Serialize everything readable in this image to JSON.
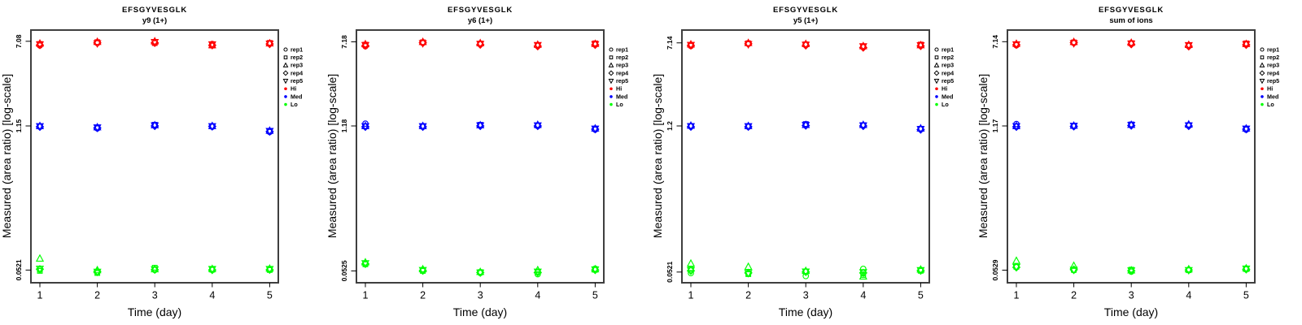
{
  "figure": {
    "xlabel": "Time (day)",
    "ylabel": "Measured (area ratio) [log-scale]",
    "x_tick_labels": [
      "1",
      "2",
      "3",
      "4",
      "5"
    ],
    "background_color": "#ffffff",
    "legend": {
      "position": "right",
      "reps": [
        {
          "label": "rep1",
          "symbol": "circle"
        },
        {
          "label": "rep2",
          "symbol": "square"
        },
        {
          "label": "rep3",
          "symbol": "triangle-up"
        },
        {
          "label": "rep4",
          "symbol": "diamond"
        },
        {
          "label": "rep5",
          "symbol": "triangle-down"
        }
      ],
      "levels": [
        {
          "label": "Hi",
          "color": "#FF0000"
        },
        {
          "label": "Med",
          "color": "#0000FF"
        },
        {
          "label": "Lo",
          "color": "#00FF00"
        }
      ]
    }
  },
  "chart_data": [
    {
      "type": "scatter",
      "title": "EFSGYVESGLK",
      "subtitle": "y9 (1+)",
      "xlabel": "Time (day)",
      "ylabel": "Measured (area ratio) [log-scale]",
      "yscale": "log",
      "grid": false,
      "ylim": [
        0.045,
        7.6
      ],
      "x": [
        1,
        2,
        3,
        4,
        5
      ],
      "yticks": [
        {
          "label": "7.08",
          "value": 7.08
        },
        {
          "label": "1.15",
          "value": 1.15
        },
        {
          "label": "0.0521",
          "value": 0.0521
        }
      ],
      "levels": [
        {
          "name": "Hi",
          "color": "#FF0000",
          "series": [
            {
              "name": "rep1",
              "symbol": "circle",
              "values": [
                6.46,
                6.81,
                6.89,
                6.68,
                6.73
              ]
            },
            {
              "name": "rep2",
              "symbol": "square",
              "values": [
                6.68,
                6.95,
                6.81,
                6.46,
                6.84
              ]
            },
            {
              "name": "rep3",
              "symbol": "triangle-up",
              "values": [
                6.76,
                7.01,
                7.08,
                6.53,
                6.79
              ]
            },
            {
              "name": "rep4",
              "symbol": "diamond",
              "values": [
                6.53,
                6.84,
                6.84,
                6.5,
                6.68
              ]
            },
            {
              "name": "rep5",
              "symbol": "triangle-down",
              "values": [
                6.61,
                6.76,
                6.95,
                6.61,
                6.71
              ]
            }
          ]
        },
        {
          "name": "Med",
          "color": "#0000FF",
          "series": [
            {
              "name": "rep1",
              "symbol": "circle",
              "values": [
                1.13,
                1.09,
                1.16,
                1.13,
                1.01
              ]
            },
            {
              "name": "rep2",
              "symbol": "square",
              "values": [
                1.14,
                1.11,
                1.18,
                1.14,
                1.03
              ]
            },
            {
              "name": "rep3",
              "symbol": "triangle-up",
              "values": [
                1.15,
                1.12,
                1.17,
                1.15,
                1.04
              ]
            },
            {
              "name": "rep4",
              "symbol": "diamond",
              "values": [
                1.13,
                1.1,
                1.15,
                1.14,
                1.02
              ]
            },
            {
              "name": "rep5",
              "symbol": "triangle-down",
              "values": [
                1.14,
                1.11,
                1.16,
                1.14,
                1.03
              ]
            }
          ]
        },
        {
          "name": "Lo",
          "color": "#00FF00",
          "series": [
            {
              "name": "rep1",
              "symbol": "circle",
              "values": [
                0.0525,
                0.0498,
                0.0522,
                0.0528,
                0.0529
              ]
            },
            {
              "name": "rep2",
              "symbol": "square",
              "values": [
                0.0512,
                0.0489,
                0.0548,
                0.0525,
                0.0522
              ]
            },
            {
              "name": "rep3",
              "symbol": "triangle-up",
              "values": [
                0.0668,
                0.0521,
                0.0532,
                0.0535,
                0.0538
              ]
            },
            {
              "name": "rep4",
              "symbol": "diamond",
              "values": [
                0.0531,
                0.0505,
                0.0525,
                0.0522,
                0.0525
              ]
            },
            {
              "name": "rep5",
              "symbol": "triangle-down",
              "values": [
                0.0535,
                0.0501,
                0.0528,
                0.0531,
                0.0531
              ]
            }
          ]
        }
      ]
    },
    {
      "type": "scatter",
      "title": "EFSGYVESGLK",
      "subtitle": "y6 (1+)",
      "xlabel": "Time (day)",
      "ylabel": "Measured (area ratio) [log-scale]",
      "yscale": "log",
      "grid": false,
      "ylim": [
        0.045,
        7.6
      ],
      "x": [
        1,
        2,
        3,
        4,
        5
      ],
      "yticks": [
        {
          "label": "7.18",
          "value": 7.18
        },
        {
          "label": "1.18",
          "value": 1.18
        },
        {
          "label": "0.0525",
          "value": 0.0525
        }
      ],
      "levels": [
        {
          "name": "Hi",
          "color": "#FF0000",
          "series": [
            {
              "name": "rep1",
              "symbol": "circle",
              "values": [
                6.53,
                7.01,
                6.84,
                6.61,
                6.81
              ]
            },
            {
              "name": "rep2",
              "symbol": "square",
              "values": [
                6.76,
                7.11,
                6.92,
                6.68,
                6.95
              ]
            },
            {
              "name": "rep3",
              "symbol": "triangle-up",
              "values": [
                6.84,
                7.18,
                6.99,
                6.76,
                6.89
              ]
            },
            {
              "name": "rep4",
              "symbol": "diamond",
              "values": [
                6.61,
                7.04,
                6.76,
                6.53,
                6.73
              ]
            },
            {
              "name": "rep5",
              "symbol": "triangle-down",
              "values": [
                6.68,
                6.95,
                6.84,
                6.68,
                6.81
              ]
            }
          ]
        },
        {
          "name": "Med",
          "color": "#0000FF",
          "series": [
            {
              "name": "rep1",
              "symbol": "circle",
              "values": [
                1.24,
                1.16,
                1.19,
                1.18,
                1.09
              ]
            },
            {
              "name": "rep2",
              "symbol": "square",
              "values": [
                1.17,
                1.17,
                1.21,
                1.19,
                1.11
              ]
            },
            {
              "name": "rep3",
              "symbol": "triangle-up",
              "values": [
                1.18,
                1.18,
                1.2,
                1.21,
                1.12
              ]
            },
            {
              "name": "rep4",
              "symbol": "diamond",
              "values": [
                1.16,
                1.16,
                1.18,
                1.18,
                1.1
              ]
            },
            {
              "name": "rep5",
              "symbol": "triangle-down",
              "values": [
                1.17,
                1.17,
                1.19,
                1.19,
                1.11
              ]
            }
          ]
        },
        {
          "name": "Lo",
          "color": "#00FF00",
          "series": [
            {
              "name": "rep1",
              "symbol": "circle",
              "values": [
                0.0615,
                0.0531,
                0.0502,
                0.0489,
                0.0551
              ]
            },
            {
              "name": "rep2",
              "symbol": "square",
              "values": [
                0.0605,
                0.0525,
                0.0512,
                0.0512,
                0.0538
              ]
            },
            {
              "name": "rep3",
              "symbol": "triangle-up",
              "values": [
                0.0632,
                0.0545,
                0.0515,
                0.0535,
                0.0545
              ]
            },
            {
              "name": "rep4",
              "symbol": "diamond",
              "values": [
                0.061,
                0.0528,
                0.0508,
                0.0508,
                0.0535
              ]
            },
            {
              "name": "rep5",
              "symbol": "triangle-down",
              "values": [
                0.0618,
                0.0533,
                0.0505,
                0.0515,
                0.0541
              ]
            }
          ]
        }
      ]
    },
    {
      "type": "scatter",
      "title": "EFSGYVESGLK",
      "subtitle": "y5 (1+)",
      "xlabel": "Time (day)",
      "ylabel": "Measured (area ratio) [log-scale]",
      "yscale": "log",
      "grid": false,
      "ylim": [
        0.045,
        7.6
      ],
      "x": [
        1,
        2,
        3,
        4,
        5
      ],
      "yticks": [
        {
          "label": "7.14",
          "value": 7.14
        },
        {
          "label": "1.2",
          "value": 1.2
        },
        {
          "label": "0.0521",
          "value": 0.0521
        }
      ],
      "levels": [
        {
          "name": "Hi",
          "color": "#FF0000",
          "series": [
            {
              "name": "rep1",
              "symbol": "circle",
              "values": [
                6.68,
                6.99,
                6.84,
                6.53,
                6.76
              ]
            },
            {
              "name": "rep2",
              "symbol": "square",
              "values": [
                6.84,
                7.08,
                6.92,
                6.61,
                6.89
              ]
            },
            {
              "name": "rep3",
              "symbol": "triangle-up",
              "values": [
                6.92,
                7.14,
                6.99,
                6.68,
                6.81
              ]
            },
            {
              "name": "rep4",
              "symbol": "diamond",
              "values": [
                6.76,
                7.01,
                6.76,
                6.46,
                6.68
              ]
            },
            {
              "name": "rep5",
              "symbol": "triangle-down",
              "values": [
                6.81,
                6.92,
                6.84,
                6.61,
                6.76
              ]
            }
          ]
        },
        {
          "name": "Med",
          "color": "#0000FF",
          "series": [
            {
              "name": "rep1",
              "symbol": "circle",
              "values": [
                1.19,
                1.18,
                1.22,
                1.21,
                1.12
              ]
            },
            {
              "name": "rep2",
              "symbol": "square",
              "values": [
                1.2,
                1.19,
                1.25,
                1.22,
                1.13
              ]
            },
            {
              "name": "rep3",
              "symbol": "triangle-up",
              "values": [
                1.21,
                1.2,
                1.23,
                1.23,
                1.14
              ]
            },
            {
              "name": "rep4",
              "symbol": "diamond",
              "values": [
                1.18,
                1.18,
                1.21,
                1.2,
                1.11
              ]
            },
            {
              "name": "rep5",
              "symbol": "triangle-down",
              "values": [
                1.19,
                1.19,
                1.22,
                1.21,
                1.12
              ]
            }
          ]
        },
        {
          "name": "Lo",
          "color": "#00FF00",
          "series": [
            {
              "name": "rep1",
              "symbol": "circle",
              "values": [
                0.0509,
                0.0505,
                0.0478,
                0.0558,
                0.0545
              ]
            },
            {
              "name": "rep2",
              "symbol": "square",
              "values": [
                0.0558,
                0.0498,
                0.0528,
                0.0489,
                0.0535
              ]
            },
            {
              "name": "rep3",
              "symbol": "triangle-up",
              "values": [
                0.0626,
                0.0584,
                0.0535,
                0.0475,
                0.0551
              ]
            },
            {
              "name": "rep4",
              "symbol": "diamond",
              "values": [
                0.0535,
                0.0512,
                0.0522,
                0.0512,
                0.0538
              ]
            },
            {
              "name": "rep5",
              "symbol": "triangle-down",
              "values": [
                0.0541,
                0.0508,
                0.0525,
                0.0518,
                0.0541
              ]
            }
          ]
        }
      ]
    },
    {
      "type": "scatter",
      "title": "EFSGYVESGLK",
      "subtitle": "sum of ions",
      "xlabel": "Time (day)",
      "ylabel": "Measured (area ratio) [log-scale]",
      "yscale": "log",
      "grid": false,
      "ylim": [
        0.045,
        7.6
      ],
      "x": [
        1,
        2,
        3,
        4,
        5
      ],
      "yticks": [
        {
          "label": "7.14",
          "value": 7.14
        },
        {
          "label": "1.17",
          "value": 1.17
        },
        {
          "label": "0.0529",
          "value": 0.0529
        }
      ],
      "levels": [
        {
          "name": "Hi",
          "color": "#FF0000",
          "series": [
            {
              "name": "rep1",
              "symbol": "circle",
              "values": [
                6.61,
                6.95,
                6.84,
                6.53,
                6.76
              ]
            },
            {
              "name": "rep2",
              "symbol": "square",
              "values": [
                6.76,
                7.04,
                6.92,
                6.61,
                6.89
              ]
            },
            {
              "name": "rep3",
              "symbol": "triangle-up",
              "values": [
                6.84,
                7.11,
                6.99,
                6.68,
                6.81
              ]
            },
            {
              "name": "rep4",
              "symbol": "diamond",
              "values": [
                6.68,
                6.99,
                6.76,
                6.46,
                6.68
              ]
            },
            {
              "name": "rep5",
              "symbol": "triangle-down",
              "values": [
                6.73,
                6.89,
                6.84,
                6.61,
                6.76
              ]
            }
          ]
        },
        {
          "name": "Med",
          "color": "#0000FF",
          "series": [
            {
              "name": "rep1",
              "symbol": "circle",
              "values": [
                1.22,
                1.16,
                1.19,
                1.18,
                1.08
              ]
            },
            {
              "name": "rep2",
              "symbol": "square",
              "values": [
                1.16,
                1.17,
                1.21,
                1.19,
                1.1
              ]
            },
            {
              "name": "rep3",
              "symbol": "triangle-up",
              "values": [
                1.17,
                1.18,
                1.2,
                1.21,
                1.11
              ]
            },
            {
              "name": "rep4",
              "symbol": "diamond",
              "values": [
                1.15,
                1.16,
                1.18,
                1.17,
                1.09
              ]
            },
            {
              "name": "rep5",
              "symbol": "triangle-down",
              "values": [
                1.16,
                1.17,
                1.19,
                1.18,
                1.1
              ]
            }
          ]
        },
        {
          "name": "Lo",
          "color": "#00FF00",
          "series": [
            {
              "name": "rep1",
              "symbol": "circle",
              "values": [
                0.0572,
                0.0528,
                0.0512,
                0.0535,
                0.0548
              ]
            },
            {
              "name": "rep2",
              "symbol": "square",
              "values": [
                0.0568,
                0.0532,
                0.0535,
                0.0528,
                0.0541
              ]
            },
            {
              "name": "rep3",
              "symbol": "triangle-up",
              "values": [
                0.0648,
                0.0582,
                0.0528,
                0.0541,
                0.0551
              ]
            },
            {
              "name": "rep4",
              "symbol": "diamond",
              "values": [
                0.0562,
                0.0535,
                0.0522,
                0.0531,
                0.0538
              ]
            },
            {
              "name": "rep5",
              "symbol": "triangle-down",
              "values": [
                0.0565,
                0.0531,
                0.0525,
                0.0528,
                0.0545
              ]
            }
          ]
        }
      ]
    }
  ]
}
